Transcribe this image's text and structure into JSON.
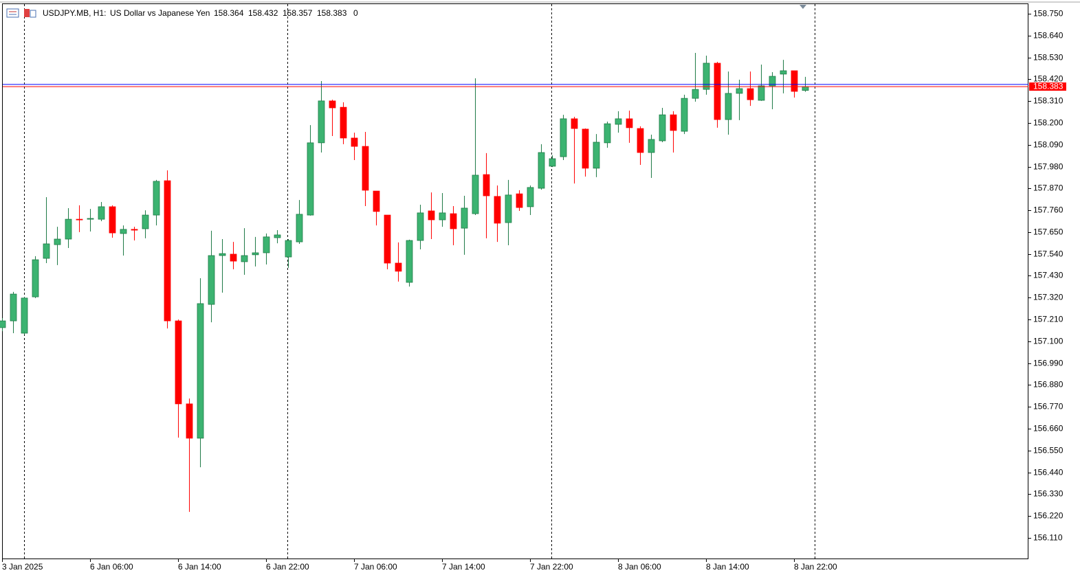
{
  "chart_data": {
    "type": "candlestick",
    "title": "USDJPY.MB, H1:",
    "subtitle": "US Dollar vs Japanese Yen",
    "spread": 0,
    "categories": [
      "3 Jan 2025",
      null,
      null,
      null,
      null,
      null,
      null,
      null,
      "6 Jan 06:00",
      null,
      null,
      null,
      null,
      null,
      null,
      null,
      "6 Jan 14:00",
      null,
      null,
      null,
      null,
      null,
      null,
      null,
      "6 Jan 22:00",
      null,
      null,
      null,
      null,
      null,
      null,
      null,
      "7 Jan 06:00",
      null,
      null,
      null,
      null,
      null,
      null,
      null,
      "7 Jan 14:00",
      null,
      null,
      null,
      null,
      null,
      null,
      null,
      "7 Jan 22:00",
      null,
      null,
      null,
      null,
      null,
      null,
      null,
      "8 Jan 06:00",
      null,
      null,
      null,
      null,
      null,
      null,
      null,
      "8 Jan 14:00",
      null,
      null,
      null,
      null,
      null,
      null,
      null,
      "8 Jan 22:00",
      null
    ],
    "open": [
      157.169,
      157.203,
      157.141,
      157.324,
      157.518,
      157.587,
      157.615,
      157.715,
      157.715,
      157.715,
      157.778,
      157.643,
      157.664,
      157.667,
      157.736,
      157.909,
      157.203,
      156.785,
      156.612,
      157.286,
      157.532,
      157.539,
      157.501,
      157.536,
      157.546,
      157.622,
      157.525,
      157.601,
      157.736,
      158.1,
      158.311,
      158.279,
      158.124,
      158.082,
      157.857,
      157.736,
      157.494,
      157.397,
      157.608,
      157.757,
      157.712,
      157.743,
      157.67,
      157.743,
      157.94,
      157.83,
      157.698,
      157.843,
      157.778,
      157.871,
      157.982,
      158.03,
      158.221,
      158.169,
      157.972,
      158.1,
      158.193,
      158.221,
      158.172,
      158.051,
      158.11,
      158.241,
      158.158,
      158.324,
      158.369,
      158.501,
      158.217,
      158.349,
      158.373,
      158.314,
      158.387,
      158.446,
      158.463,
      158.364
    ],
    "high": [
      157.217,
      157.349,
      157.324,
      157.529,
      157.826,
      157.677,
      157.771,
      157.785,
      157.767,
      157.802,
      157.785,
      157.684,
      157.677,
      157.76,
      157.913,
      157.961,
      157.21,
      156.812,
      157.418,
      157.657,
      157.615,
      157.601,
      157.67,
      157.626,
      157.643,
      157.66,
      157.615,
      157.812,
      158.189,
      158.411,
      158.317,
      158.304,
      158.151,
      158.155,
      157.857,
      157.736,
      157.598,
      157.612,
      157.788,
      157.85,
      157.847,
      157.781,
      157.833,
      158.425,
      158.048,
      157.885,
      157.913,
      157.861,
      157.885,
      158.093,
      158.037,
      158.241,
      158.231,
      158.172,
      158.144,
      158.207,
      158.259,
      158.262,
      158.183,
      158.141,
      158.276,
      158.259,
      158.342,
      158.553,
      158.539,
      158.508,
      158.459,
      158.418,
      158.459,
      158.494,
      158.456,
      158.518,
      158.463,
      158.432
    ],
    "low": [
      157.151,
      157.141,
      157.134,
      157.318,
      157.494,
      157.484,
      157.57,
      157.65,
      157.653,
      157.705,
      157.622,
      157.532,
      157.608,
      157.619,
      157.684,
      157.165,
      156.615,
      156.241,
      156.466,
      157.196,
      157.345,
      157.463,
      157.435,
      157.477,
      157.487,
      157.594,
      157.47,
      157.591,
      157.733,
      158.051,
      158.134,
      158.093,
      158.013,
      157.781,
      157.684,
      157.463,
      157.401,
      157.376,
      157.563,
      157.615,
      157.677,
      157.584,
      157.536,
      157.736,
      157.619,
      157.601,
      157.584,
      157.757,
      157.736,
      157.864,
      157.978,
      158.013,
      157.895,
      157.93,
      157.927,
      158.075,
      158.151,
      158.1,
      157.989,
      157.923,
      158.103,
      158.051,
      158.144,
      158.307,
      158.342,
      158.176,
      158.141,
      158.214,
      158.286,
      158.311,
      158.269,
      158.349,
      158.328,
      158.357
    ],
    "close": [
      157.203,
      157.338,
      157.318,
      157.511,
      157.591,
      157.615,
      157.715,
      157.712,
      157.719,
      157.778,
      157.646,
      157.664,
      157.66,
      157.736,
      157.906,
      157.203,
      156.785,
      156.612,
      157.29,
      157.532,
      157.542,
      157.504,
      157.532,
      157.546,
      157.626,
      157.636,
      157.608,
      157.74,
      158.1,
      158.311,
      158.276,
      158.124,
      158.082,
      157.861,
      157.754,
      157.494,
      157.453,
      157.608,
      157.747,
      157.712,
      157.747,
      157.667,
      157.771,
      157.937,
      157.833,
      157.695,
      157.837,
      157.774,
      157.875,
      158.051,
      158.02,
      158.221,
      158.172,
      157.972,
      158.103,
      158.196,
      158.221,
      158.176,
      158.051,
      158.117,
      158.241,
      158.162,
      158.324,
      158.369,
      158.501,
      158.217,
      158.349,
      158.373,
      158.317,
      158.387,
      158.435,
      158.463,
      158.359,
      158.383
    ],
    "up_color": "#3cb371",
    "down_color": "#ff0000",
    "bid": 158.383,
    "bid_color": "#ff0000",
    "ask": 158.394,
    "ask_color": "#0000ff",
    "ylim": [
      156.006,
      158.802
    ],
    "yticks": [
      {
        "value": 158.75,
        "label": "158.750"
      },
      {
        "value": 158.64,
        "label": "158.640"
      },
      {
        "value": 158.53,
        "label": "158.530"
      },
      {
        "value": 158.42,
        "label": "158.420"
      },
      {
        "value": 158.31,
        "label": "158.310"
      },
      {
        "value": 158.2,
        "label": "158.200"
      },
      {
        "value": 158.09,
        "label": "158.090"
      },
      {
        "value": 157.98,
        "label": "157.980"
      },
      {
        "value": 157.87,
        "label": "157.870"
      },
      {
        "value": 157.76,
        "label": "157.760"
      },
      {
        "value": 157.65,
        "label": "157.650"
      },
      {
        "value": 157.54,
        "label": "157.540"
      },
      {
        "value": 157.43,
        "label": "157.430"
      },
      {
        "value": 157.32,
        "label": "157.320"
      },
      {
        "value": 157.21,
        "label": "157.210"
      },
      {
        "value": 157.1,
        "label": "157.100"
      },
      {
        "value": 156.99,
        "label": "156.990"
      },
      {
        "value": 156.88,
        "label": "156.880"
      },
      {
        "value": 156.77,
        "label": "156.770"
      },
      {
        "value": 156.66,
        "label": "156.660"
      },
      {
        "value": 156.55,
        "label": "156.550"
      },
      {
        "value": 156.44,
        "label": "156.440"
      },
      {
        "value": 156.33,
        "label": "156.330"
      },
      {
        "value": 156.22,
        "label": "156.220"
      },
      {
        "value": 156.11,
        "label": "156.110"
      }
    ]
  }
}
